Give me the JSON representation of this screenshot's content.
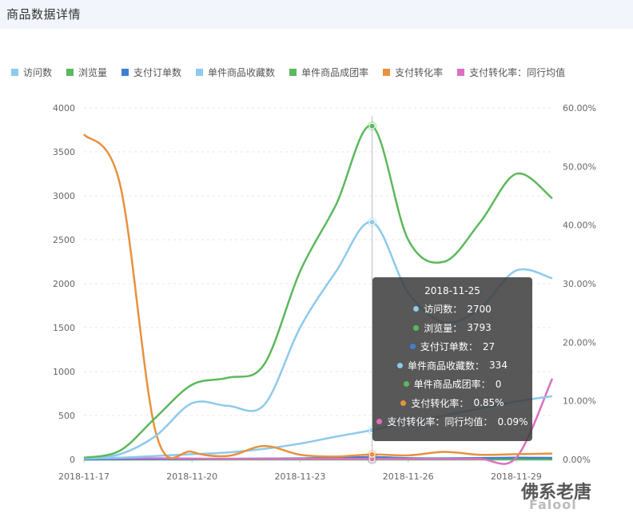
{
  "page": {
    "title": "商品数据详情"
  },
  "chart_data": {
    "type": "line",
    "x": [
      "2018-11-17",
      "2018-11-18",
      "2018-11-19",
      "2018-11-20",
      "2018-11-21",
      "2018-11-22",
      "2018-11-23",
      "2018-11-24",
      "2018-11-25",
      "2018-11-26",
      "2018-11-27",
      "2018-11-28",
      "2018-11-29",
      "2018-11-30"
    ],
    "x_ticks": [
      "2018-11-17",
      "2018-11-20",
      "2018-11-23",
      "2018-11-26",
      "2018-11-29"
    ],
    "y_left": {
      "ticks": [
        "0",
        "500",
        "1000",
        "1500",
        "2000",
        "2500",
        "3000",
        "3500",
        "4000"
      ],
      "range": [
        0,
        4000
      ]
    },
    "y_right": {
      "ticks": [
        "0.00%",
        "10.00%",
        "20.00%",
        "30.00%",
        "40.00%",
        "50.00%",
        "60.00%"
      ],
      "range": [
        0,
        60
      ]
    },
    "grid": "horizontal dashed",
    "legend_position": "top-left",
    "series": [
      {
        "name": "访问数",
        "color": "#8dcaeb",
        "axis": "left",
        "values": [
          10,
          60,
          270,
          640,
          610,
          620,
          1500,
          2140,
          2700,
          1900,
          1560,
          1720,
          2150,
          2060
        ]
      },
      {
        "name": "浏览量",
        "color": "#5cb85c",
        "axis": "left",
        "values": [
          20,
          100,
          480,
          850,
          930,
          1080,
          2140,
          2900,
          3793,
          2500,
          2250,
          2700,
          3250,
          2970
        ]
      },
      {
        "name": "支付订单数",
        "color": "#3f7fcf",
        "axis": "left",
        "values": [
          0,
          2,
          4,
          6,
          8,
          10,
          12,
          18,
          27,
          15,
          12,
          16,
          20,
          18
        ]
      },
      {
        "name": "单件商品收藏数",
        "color": "#8dcaeb",
        "axis": "left",
        "values": [
          10,
          20,
          40,
          60,
          80,
          120,
          180,
          260,
          334,
          420,
          500,
          580,
          660,
          720
        ]
      },
      {
        "name": "单件商品成团率",
        "color": "#5cb85c",
        "axis": "right",
        "values": [
          0,
          0,
          0,
          0,
          0,
          0,
          0,
          0,
          0,
          0,
          0,
          0,
          0,
          0
        ]
      },
      {
        "name": "支付转化率",
        "color": "#e8913e",
        "axis": "right",
        "values": [
          55.5,
          47,
          4.5,
          1.3,
          0.6,
          2.3,
          0.8,
          0.5,
          0.85,
          0.7,
          1.3,
          0.8,
          0.9,
          1.0
        ]
      },
      {
        "name": "支付转化率：同行均值",
        "color": "#dc6fc1",
        "axis": "right",
        "values": [
          0.2,
          0.2,
          0.2,
          0.15,
          0.1,
          0.1,
          0.1,
          0.1,
          0.09,
          0.1,
          0.1,
          0.1,
          0.3,
          13.8
        ]
      }
    ],
    "tooltip": {
      "date": "2018-11-25",
      "rows": [
        {
          "label": "访问数：",
          "value": "2700",
          "color": "#8dcaeb"
        },
        {
          "label": "浏览量：",
          "value": "3793",
          "color": "#5cb85c"
        },
        {
          "label": "支付订单数：",
          "value": "27",
          "color": "#3f7fcf"
        },
        {
          "label": "单件商品收藏数：",
          "value": "334",
          "color": "#8dcaeb"
        },
        {
          "label": "单件商品成团率：",
          "value": "0",
          "color": "#5cb85c"
        },
        {
          "label": "支付转化率：",
          "value": "0.85%",
          "color": "#e8913e"
        },
        {
          "label": "支付转化率：同行均值：",
          "value": "0.09%",
          "color": "#dc6fc1"
        }
      ]
    }
  },
  "watermark": {
    "line1": "佛系老唐",
    "line2": "Falool"
  }
}
